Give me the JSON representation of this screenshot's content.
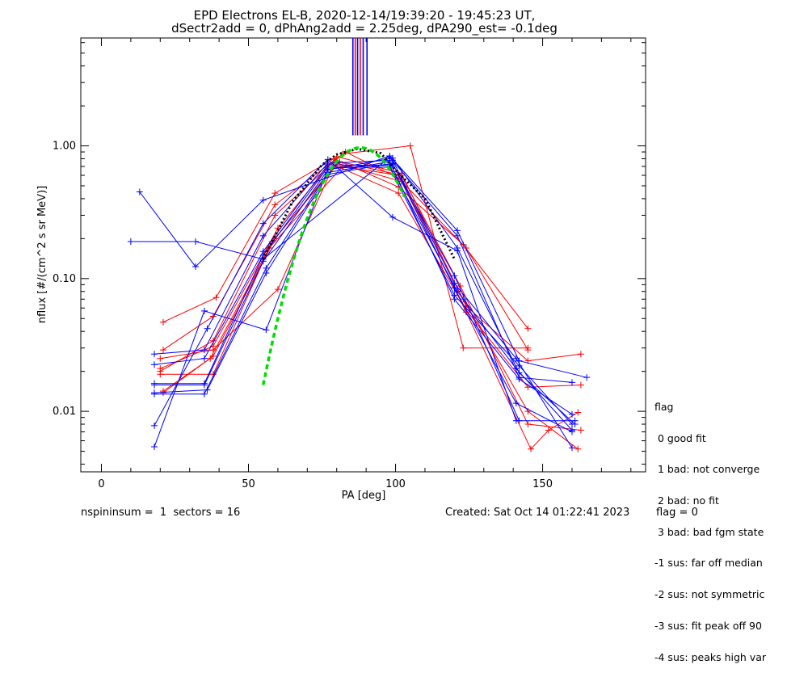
{
  "chart_data": {
    "type": "line",
    "title": [
      "EPD Electrons EL-B, 2020-12-14/19:39:20 - 19:45:23 UT,",
      "dSectr2add = 0, dPhAng2add = 2.25deg, dPA290_est=  -0.1deg"
    ],
    "xlabel": "PA [deg]",
    "ylabel": "nflux [#/(cm^2 s sr MeV)]",
    "xlim": [
      -7,
      185
    ],
    "ylim": [
      0.0035,
      6.5
    ],
    "yscale": "log",
    "xticks": [
      0,
      50,
      100,
      150
    ],
    "yticks": [
      {
        "value": 0.01,
        "label": "0.01"
      },
      {
        "value": 0.1,
        "label": "0.10"
      },
      {
        "value": 1.0,
        "label": "1.00"
      }
    ],
    "colors": {
      "red": "#ff0000",
      "blue": "#0000ff",
      "fit": "#00dd00",
      "median": "#000000"
    },
    "top_markers": [
      {
        "x": 85.5,
        "color": "#0000ff"
      },
      {
        "x": 86.3,
        "color": "#ff0000"
      },
      {
        "x": 87.1,
        "color": "#0000ff"
      },
      {
        "x": 88.0,
        "color": "#ff0000"
      },
      {
        "x": 89.0,
        "color": "#0000ff"
      },
      {
        "x": 90.3,
        "color": "#0000ff"
      }
    ],
    "series": [
      {
        "color": "red",
        "points": [
          [
            21,
            0.047
          ],
          [
            39,
            0.072
          ],
          [
            59,
            0.44
          ],
          [
            79,
            0.8
          ],
          [
            101,
            0.49
          ],
          [
            123,
            0.18
          ],
          [
            145,
            0.042
          ]
        ]
      },
      {
        "color": "red",
        "points": [
          [
            21,
            0.029
          ],
          [
            38,
            0.052
          ],
          [
            59,
            0.36
          ],
          [
            83,
            0.9
          ],
          [
            101,
            0.57
          ],
          [
            124,
            0.17
          ],
          [
            145,
            0.029
          ]
        ]
      },
      {
        "color": "red",
        "points": [
          [
            20,
            0.02
          ],
          [
            38,
            0.034
          ],
          [
            59,
            0.3
          ],
          [
            82,
            0.87
          ],
          [
            105,
            1.0
          ],
          [
            123,
            0.03
          ],
          [
            145,
            0.03
          ]
        ]
      },
      {
        "color": "red",
        "points": [
          [
            20,
            0.021
          ],
          [
            38,
            0.031
          ],
          [
            60,
            0.24
          ],
          [
            80,
            0.83
          ],
          [
            102,
            0.62
          ],
          [
            124,
            0.062
          ],
          [
            145,
            0.024
          ],
          [
            163,
            0.027
          ]
        ]
      },
      {
        "color": "red",
        "points": [
          [
            20,
            0.025
          ],
          [
            38,
            0.029
          ],
          [
            60,
            0.083
          ],
          [
            79,
            0.72
          ],
          [
            101,
            0.44
          ],
          [
            124,
            0.058
          ],
          [
            145,
            0.0152
          ],
          [
            163,
            0.0158
          ]
        ]
      },
      {
        "color": "red",
        "points": [
          [
            21,
            0.0138
          ],
          [
            38,
            0.026
          ],
          [
            59,
            0.2
          ],
          [
            80,
            0.74
          ],
          [
            102,
            0.54
          ],
          [
            124,
            0.056
          ],
          [
            146,
            0.0052
          ],
          [
            152,
            0.0072
          ],
          [
            162,
            0.0098
          ]
        ]
      },
      {
        "color": "red",
        "points": [
          [
            20,
            0.019
          ],
          [
            38,
            0.019
          ],
          [
            58,
            0.19
          ],
          [
            81,
            0.76
          ],
          [
            102,
            0.6
          ],
          [
            122,
            0.088
          ],
          [
            145,
            0.008
          ],
          [
            163,
            0.0072
          ]
        ]
      },
      {
        "color": "red",
        "points": [
          [
            21,
            0.0142
          ],
          [
            37,
            0.025
          ],
          [
            57,
            0.17
          ],
          [
            82,
            0.7
          ],
          [
            101,
            0.6
          ],
          [
            123,
            0.07
          ],
          [
            145,
            0.01
          ],
          [
            162,
            0.0052
          ]
        ]
      },
      {
        "color": "blue",
        "points": [
          [
            13,
            0.45
          ],
          [
            32,
            0.123
          ],
          [
            55,
            0.39
          ],
          [
            98,
            0.84
          ],
          [
            121,
            0.23
          ],
          [
            142,
            0.024
          ],
          [
            165,
            0.018
          ]
        ]
      },
      {
        "color": "blue",
        "points": [
          [
            10,
            0.19
          ],
          [
            32,
            0.19
          ],
          [
            55,
            0.14
          ],
          [
            98,
            0.82
          ],
          [
            121,
            0.21
          ],
          [
            142,
            0.018
          ],
          [
            160,
            0.0165
          ]
        ]
      },
      {
        "color": "blue",
        "points": [
          [
            18,
            0.0078
          ],
          [
            36,
            0.042
          ],
          [
            55,
            0.26
          ],
          [
            77,
            0.79
          ],
          [
            99,
            0.29
          ],
          [
            121,
            0.162
          ],
          [
            141,
            0.0085
          ]
        ]
      },
      {
        "color": "blue",
        "points": [
          [
            18,
            0.0054
          ],
          [
            35,
            0.057
          ],
          [
            56,
            0.041
          ],
          [
            77,
            0.67
          ],
          [
            99,
            0.73
          ],
          [
            120,
            0.105
          ],
          [
            142,
            0.0085
          ],
          [
            161,
            0.0085
          ]
        ]
      },
      {
        "color": "blue",
        "points": [
          [
            18,
            0.027
          ],
          [
            35,
            0.029
          ],
          [
            55,
            0.21
          ],
          [
            77,
            0.74
          ],
          [
            99,
            0.78
          ],
          [
            120,
            0.092
          ],
          [
            141,
            0.025
          ],
          [
            160,
            0.0053
          ]
        ]
      },
      {
        "color": "blue",
        "points": [
          [
            18,
            0.0225
          ],
          [
            35,
            0.025
          ],
          [
            55,
            0.16
          ],
          [
            77,
            0.72
          ],
          [
            98,
            0.71
          ],
          [
            121,
            0.08
          ],
          [
            141,
            0.021
          ],
          [
            160,
            0.0072
          ]
        ]
      },
      {
        "color": "blue",
        "points": [
          [
            18,
            0.0162
          ],
          [
            35,
            0.0162
          ],
          [
            55,
            0.15
          ],
          [
            77,
            0.69
          ],
          [
            98,
            0.69
          ],
          [
            120,
            0.075
          ],
          [
            142,
            0.022
          ],
          [
            160,
            0.008
          ]
        ]
      },
      {
        "color": "blue",
        "points": [
          [
            18,
            0.0158
          ],
          [
            35,
            0.0158
          ],
          [
            55,
            0.135
          ],
          [
            77,
            0.66
          ],
          [
            99,
            0.81
          ],
          [
            121,
            0.17
          ],
          [
            142,
            0.0195
          ],
          [
            161,
            0.008
          ]
        ]
      },
      {
        "color": "blue",
        "points": [
          [
            18,
            0.0135
          ],
          [
            35,
            0.0135
          ],
          [
            56,
            0.12
          ],
          [
            77,
            0.63
          ],
          [
            98,
            0.76
          ],
          [
            120,
            0.07
          ],
          [
            142,
            0.0175
          ],
          [
            160,
            0.0095
          ]
        ]
      },
      {
        "color": "blue",
        "points": [
          [
            18,
            0.0138
          ],
          [
            36,
            0.0145
          ],
          [
            56,
            0.11
          ],
          [
            77,
            0.61
          ],
          [
            99,
            0.74
          ],
          [
            120,
            0.085
          ],
          [
            141,
            0.0115
          ],
          [
            160,
            0.007
          ]
        ]
      }
    ],
    "fit_curve": {
      "color": "fit",
      "style": "dashed",
      "x_range": [
        55,
        103
      ],
      "peak_x": 88,
      "peak_y": 0.97,
      "sigma": 11.5
    },
    "median_curve": {
      "color": "median",
      "style": "dotted",
      "points": [
        [
          55,
          0.14
        ],
        [
          65,
          0.38
        ],
        [
          75,
          0.72
        ],
        [
          80,
          0.86
        ],
        [
          87,
          0.95
        ],
        [
          95,
          0.88
        ],
        [
          101,
          0.62
        ],
        [
          110,
          0.4
        ],
        [
          120,
          0.14
        ]
      ]
    }
  },
  "legend": {
    "title": "flag",
    "items": [
      " 0 good fit",
      " 1 bad: not converge",
      " 2 bad: no fit",
      " 3 bad: bad fgm state",
      "-1 sus: far off median",
      "-2 sus: not symmetric",
      "-3 sus: fit peak off 90",
      "-4 sus: peaks high var"
    ]
  },
  "footer": {
    "left": "nspininsum =  1  sectors = 16",
    "created": "Created: Sat Oct 14 01:22:41 2023",
    "flag": "flag = 0"
  }
}
